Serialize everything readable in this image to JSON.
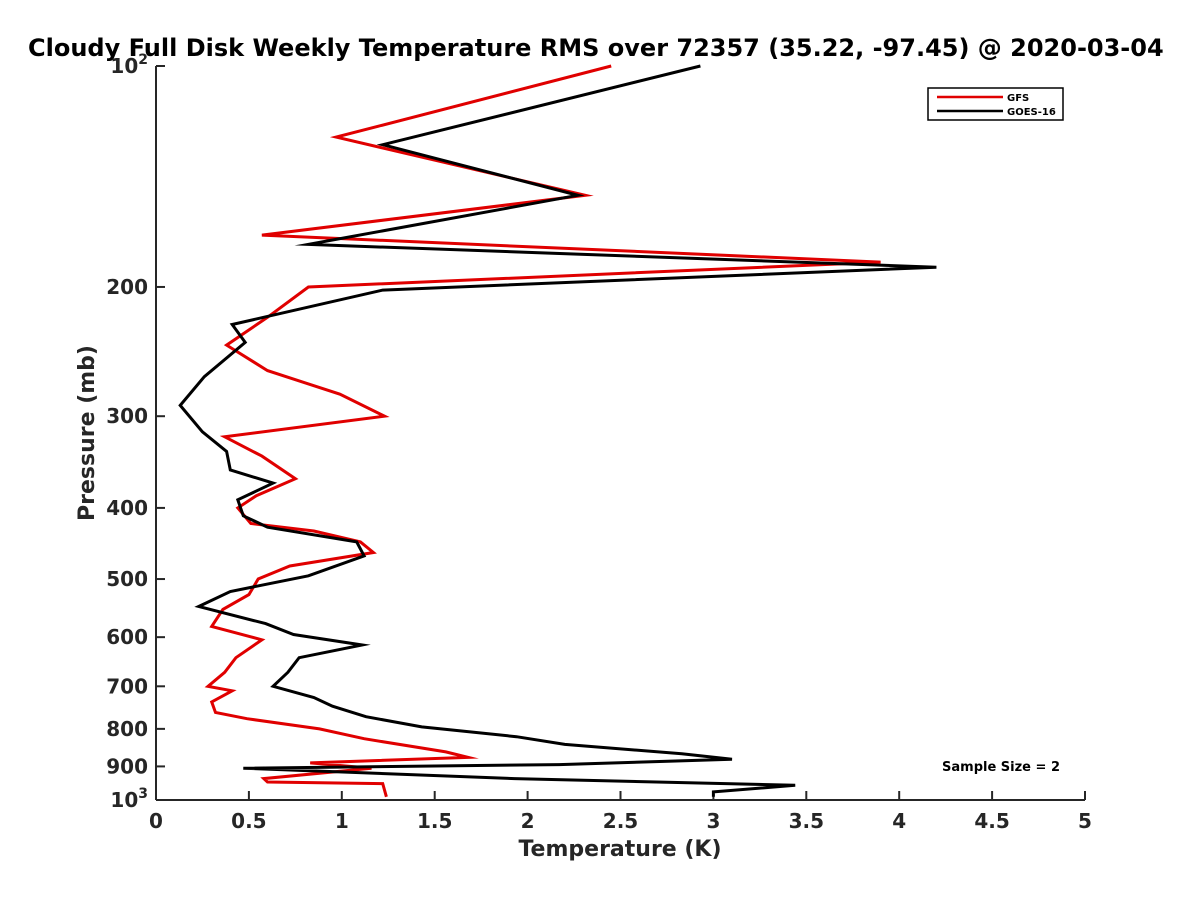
{
  "chart_data": {
    "type": "line",
    "title": "Cloudy Full Disk Weekly Temperature RMS over 72357 (35.22, -97.45) @ 2020-03-04",
    "xlabel": "Temperature (K)",
    "ylabel": "Pressure (mb)",
    "xlim": [
      0,
      5
    ],
    "ylim": [
      100,
      1000
    ],
    "y_scale": "log",
    "y_reversed": true,
    "grid": false,
    "legend_position": "top-right",
    "x_ticks": [
      "0",
      "0.5",
      "1",
      "1.5",
      "2",
      "2.5",
      "3",
      "3.5",
      "4",
      "4.5",
      "5"
    ],
    "y_ticks": [
      {
        "value": 100,
        "label": "10",
        "sup": "2"
      },
      {
        "value": 200,
        "label": "200",
        "sup": ""
      },
      {
        "value": 300,
        "label": "300",
        "sup": ""
      },
      {
        "value": 400,
        "label": "400",
        "sup": ""
      },
      {
        "value": 500,
        "label": "500",
        "sup": ""
      },
      {
        "value": 600,
        "label": "600",
        "sup": ""
      },
      {
        "value": 700,
        "label": "700",
        "sup": ""
      },
      {
        "value": 800,
        "label": "800",
        "sup": ""
      },
      {
        "value": 900,
        "label": "900",
        "sup": ""
      },
      {
        "value": 1000,
        "label": "10",
        "sup": "3"
      }
    ],
    "annotation": "Sample Size = 2",
    "series": [
      {
        "name": "GFS",
        "color": "#e00000",
        "points": [
          [
            2.45,
            100
          ],
          [
            0.97,
            125
          ],
          [
            2.31,
            150
          ],
          [
            0.57,
            170
          ],
          [
            3.9,
            185
          ],
          [
            0.82,
            200
          ],
          [
            0.6,
            220
          ],
          [
            0.38,
            240
          ],
          [
            0.6,
            260
          ],
          [
            0.99,
            280
          ],
          [
            1.23,
            300
          ],
          [
            0.37,
            320
          ],
          [
            0.57,
            340
          ],
          [
            0.75,
            365
          ],
          [
            0.54,
            385
          ],
          [
            0.44,
            400
          ],
          [
            0.51,
            420
          ],
          [
            0.85,
            430
          ],
          [
            1.1,
            445
          ],
          [
            1.17,
            460
          ],
          [
            0.72,
            480
          ],
          [
            0.55,
            500
          ],
          [
            0.5,
            525
          ],
          [
            0.36,
            550
          ],
          [
            0.3,
            580
          ],
          [
            0.57,
            605
          ],
          [
            0.43,
            640
          ],
          [
            0.37,
            670
          ],
          [
            0.28,
            700
          ],
          [
            0.41,
            710
          ],
          [
            0.3,
            735
          ],
          [
            0.32,
            760
          ],
          [
            0.49,
            775
          ],
          [
            0.88,
            800
          ],
          [
            1.12,
            825
          ],
          [
            1.56,
            860
          ],
          [
            1.68,
            875
          ],
          [
            0.83,
            890
          ],
          [
            1.16,
            905
          ],
          [
            0.58,
            935
          ],
          [
            0.6,
            945
          ],
          [
            1.22,
            950
          ],
          [
            1.24,
            990
          ]
        ]
      },
      {
        "name": "GOES-16",
        "color": "#000000",
        "points": [
          [
            2.93,
            100
          ],
          [
            1.22,
            128
          ],
          [
            2.27,
            150
          ],
          [
            0.82,
            175
          ],
          [
            4.2,
            188
          ],
          [
            1.22,
            202
          ],
          [
            0.41,
            225
          ],
          [
            0.48,
            238
          ],
          [
            0.26,
            265
          ],
          [
            0.13,
            290
          ],
          [
            0.25,
            315
          ],
          [
            0.38,
            335
          ],
          [
            0.4,
            355
          ],
          [
            0.63,
            370
          ],
          [
            0.44,
            390
          ],
          [
            0.47,
            410
          ],
          [
            0.6,
            425
          ],
          [
            1.08,
            445
          ],
          [
            1.12,
            465
          ],
          [
            0.82,
            495
          ],
          [
            0.4,
            520
          ],
          [
            0.23,
            545
          ],
          [
            0.59,
            575
          ],
          [
            0.74,
            595
          ],
          [
            1.11,
            615
          ],
          [
            0.77,
            640
          ],
          [
            0.71,
            670
          ],
          [
            0.63,
            700
          ],
          [
            0.85,
            725
          ],
          [
            0.95,
            745
          ],
          [
            1.13,
            770
          ],
          [
            1.43,
            795
          ],
          [
            1.94,
            820
          ],
          [
            2.2,
            840
          ],
          [
            2.83,
            865
          ],
          [
            3.1,
            880
          ],
          [
            2.17,
            895
          ],
          [
            0.47,
            905
          ],
          [
            1.93,
            935
          ],
          [
            3.44,
            955
          ],
          [
            3.0,
            975
          ],
          [
            3.0,
            990
          ]
        ]
      }
    ]
  }
}
